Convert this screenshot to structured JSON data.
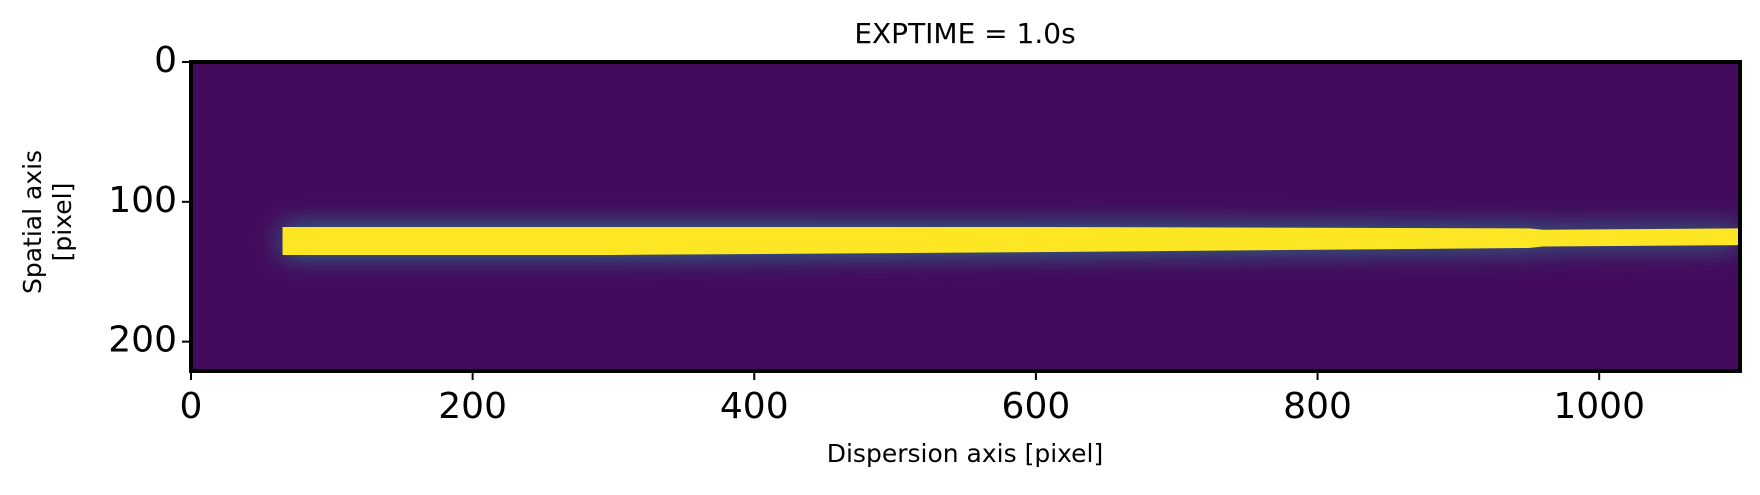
{
  "chart_data": {
    "type": "image",
    "title": "EXPTIME = 1.0s",
    "x_label": "Dispersion axis [pixel]",
    "y_label": [
      "Spatial axis",
      "[pixel]"
    ],
    "xlim": [
      0,
      1100
    ],
    "ylim": [
      221,
      0
    ],
    "xticks": [
      0,
      200,
      400,
      600,
      800,
      1000
    ],
    "yticks": [
      0,
      100,
      200
    ],
    "background_color": "#440a5c",
    "halo_color": "#26828e",
    "trace_color": "#fde725",
    "trace": {
      "x": [
        65,
        300,
        600,
        950,
        960,
        1100
      ],
      "center": [
        128,
        128,
        127,
        126,
        126,
        125
      ],
      "width": [
        20,
        20,
        18,
        14,
        12,
        12
      ]
    }
  }
}
